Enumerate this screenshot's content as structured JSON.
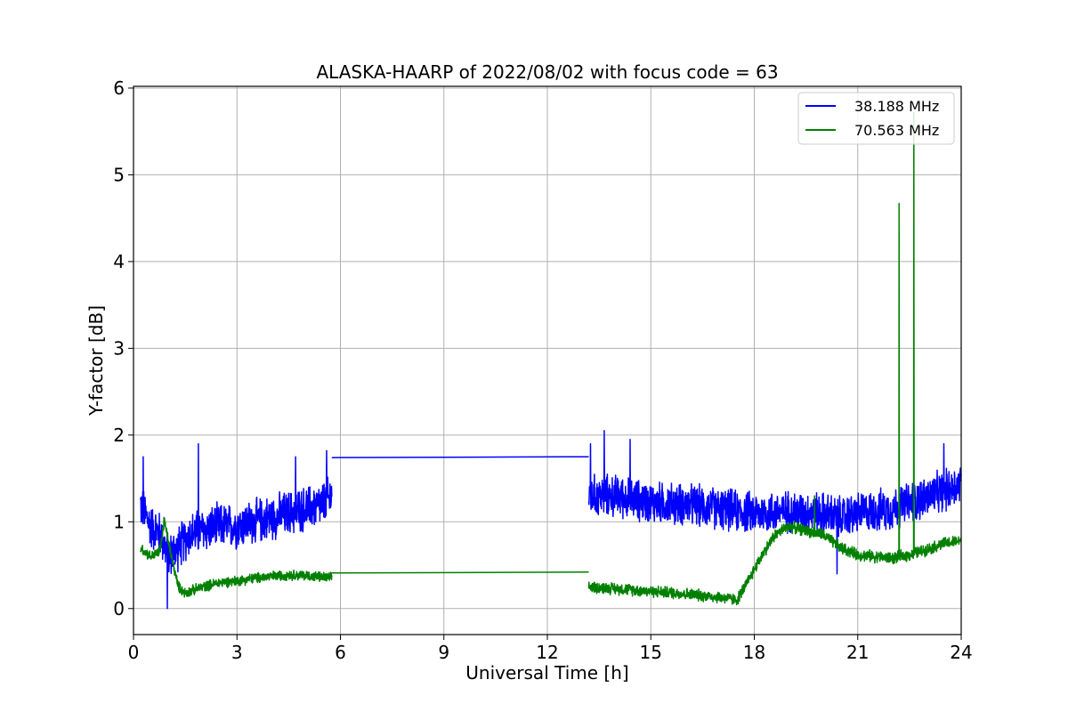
{
  "chart_data": {
    "type": "line",
    "title": "ALASKA-HAARP of 2022/08/02 with focus code = 63",
    "xlabel": "Universal Time [h]",
    "ylabel": "Y-factor [dB]",
    "xlim": [
      0,
      24
    ],
    "ylim": [
      -0.3,
      6.02
    ],
    "xticks": [
      0,
      3,
      6,
      9,
      12,
      15,
      18,
      21,
      24
    ],
    "yticks": [
      0,
      1,
      2,
      3,
      4,
      5,
      6
    ],
    "grid": true,
    "legend_position": "top-right",
    "series": [
      {
        "name": "38.188 MHz",
        "color": "#0000ff",
        "segments": [
          {
            "x_start": 0.2,
            "x_end": 5.75,
            "points": [
              [
                0.2,
                1.2
              ],
              [
                0.5,
                0.95
              ],
              [
                0.8,
                0.85
              ],
              [
                1.0,
                0.6
              ],
              [
                1.3,
                0.7
              ],
              [
                1.6,
                0.85
              ],
              [
                2.0,
                0.9
              ],
              [
                2.5,
                0.95
              ],
              [
                3.0,
                0.95
              ],
              [
                3.5,
                1.0
              ],
              [
                4.0,
                1.05
              ],
              [
                4.5,
                1.1
              ],
              [
                5.0,
                1.15
              ],
              [
                5.5,
                1.2
              ],
              [
                5.75,
                1.3
              ]
            ],
            "noise_amplitude": 0.3,
            "spikes": [
              [
                0.28,
                1.75
              ],
              [
                1.88,
                1.9
              ],
              [
                4.7,
                1.75
              ],
              [
                5.6,
                1.82
              ],
              [
                0.98,
                0.0
              ]
            ]
          },
          {
            "x_start": 5.75,
            "x_end": 13.2,
            "points": [
              [
                5.75,
                1.74
              ],
              [
                13.2,
                1.75
              ]
            ],
            "noise_amplitude": 0
          },
          {
            "x_start": 13.2,
            "x_end": 24.0,
            "points": [
              [
                13.2,
                1.3
              ],
              [
                14.0,
                1.3
              ],
              [
                15.0,
                1.22
              ],
              [
                16.0,
                1.2
              ],
              [
                17.0,
                1.15
              ],
              [
                17.5,
                1.12
              ],
              [
                18.0,
                1.1
              ],
              [
                19.0,
                1.12
              ],
              [
                20.0,
                1.1
              ],
              [
                20.5,
                1.05
              ],
              [
                21.0,
                1.1
              ],
              [
                22.0,
                1.15
              ],
              [
                22.7,
                1.25
              ],
              [
                23.5,
                1.35
              ],
              [
                24.0,
                1.45
              ]
            ],
            "noise_amplitude": 0.28,
            "spikes": [
              [
                13.25,
                1.9
              ],
              [
                13.65,
                2.05
              ],
              [
                14.4,
                1.95
              ],
              [
                23.5,
                1.9
              ],
              [
                20.4,
                0.4
              ]
            ]
          }
        ]
      },
      {
        "name": "70.563 MHz",
        "color": "#008000",
        "segments": [
          {
            "x_start": 0.2,
            "x_end": 5.75,
            "points": [
              [
                0.2,
                0.7
              ],
              [
                0.5,
                0.6
              ],
              [
                0.75,
                0.65
              ],
              [
                0.9,
                1.0
              ],
              [
                1.1,
                0.6
              ],
              [
                1.3,
                0.25
              ],
              [
                1.5,
                0.18
              ],
              [
                2.0,
                0.25
              ],
              [
                2.5,
                0.3
              ],
              [
                3.0,
                0.32
              ],
              [
                3.5,
                0.35
              ],
              [
                4.0,
                0.37
              ],
              [
                4.5,
                0.39
              ],
              [
                5.0,
                0.38
              ],
              [
                5.5,
                0.36
              ],
              [
                5.75,
                0.35
              ]
            ],
            "noise_amplitude": 0.07,
            "spikes": [
              [
                0.88,
                1.05
              ]
            ]
          },
          {
            "x_start": 5.75,
            "x_end": 13.2,
            "points": [
              [
                5.75,
                0.41
              ],
              [
                13.2,
                0.42
              ]
            ],
            "noise_amplitude": 0
          },
          {
            "x_start": 13.2,
            "x_end": 24.0,
            "points": [
              [
                13.2,
                0.25
              ],
              [
                14.0,
                0.23
              ],
              [
                15.0,
                0.2
              ],
              [
                16.0,
                0.17
              ],
              [
                17.0,
                0.13
              ],
              [
                17.5,
                0.1
              ],
              [
                17.8,
                0.3
              ],
              [
                18.2,
                0.6
              ],
              [
                18.6,
                0.85
              ],
              [
                19.0,
                0.95
              ],
              [
                19.5,
                0.9
              ],
              [
                20.0,
                0.85
              ],
              [
                20.5,
                0.7
              ],
              [
                21.0,
                0.62
              ],
              [
                21.5,
                0.6
              ],
              [
                22.0,
                0.58
              ],
              [
                22.5,
                0.62
              ],
              [
                23.0,
                0.68
              ],
              [
                23.5,
                0.75
              ],
              [
                24.0,
                0.78
              ]
            ],
            "noise_amplitude": 0.08,
            "spikes": [
              [
                22.2,
                4.67
              ],
              [
                22.63,
                5.72
              ],
              [
                19.75,
                1.3
              ]
            ]
          }
        ]
      }
    ]
  }
}
